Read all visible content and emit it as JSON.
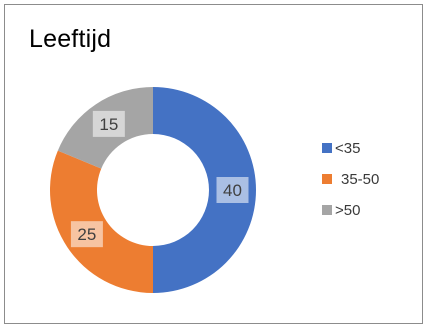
{
  "chart_data": {
    "type": "pie",
    "variant": "donut",
    "title": "Leeftijd",
    "categories": [
      "<35",
      "35-50",
      ">50"
    ],
    "values": [
      40,
      25,
      15
    ],
    "colors": [
      "#4472c4",
      "#ed7d31",
      "#a5a5a5"
    ],
    "data_labels": [
      "40",
      "25",
      "15"
    ],
    "legend_position": "right"
  }
}
